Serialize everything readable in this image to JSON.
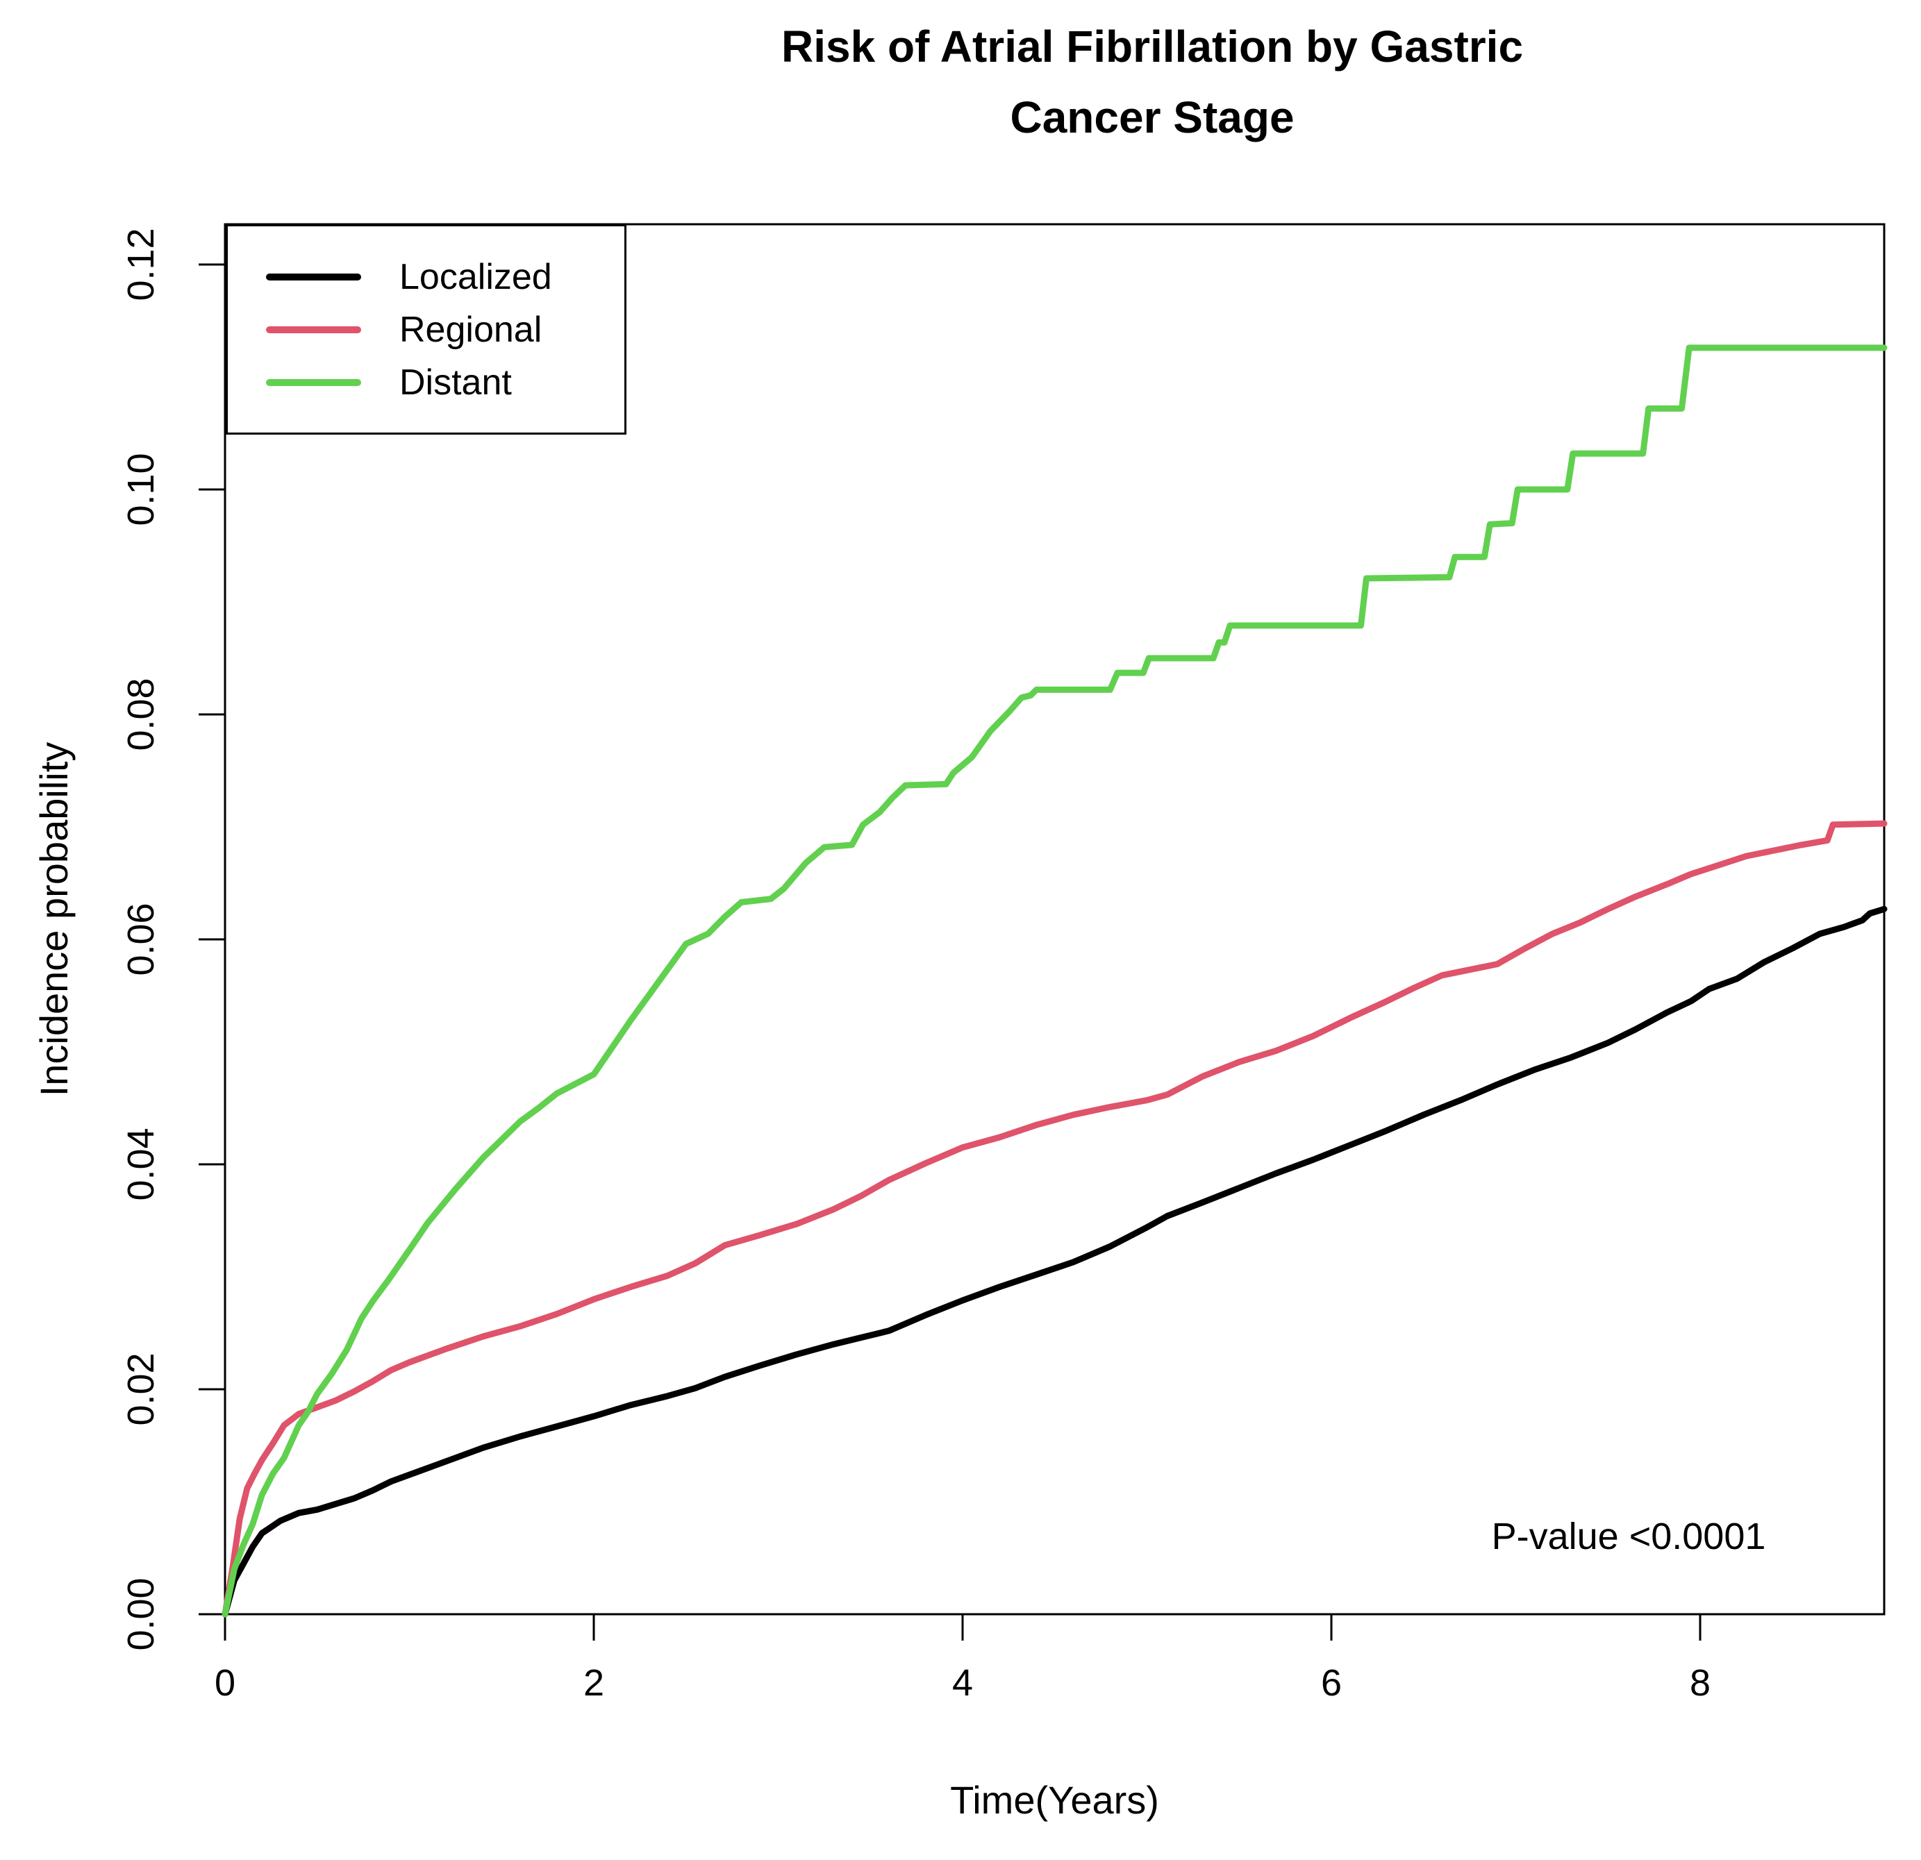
{
  "chart_data": {
    "type": "line",
    "title": "Risk of Atrial Fibrillation by Gastric Cancer Stage",
    "title_lines": [
      "Risk of Atrial Fibrillation by Gastric",
      "Cancer Stage"
    ],
    "xlabel": "Time(Years)",
    "ylabel": "Incidence probability",
    "annotation": "P-value <0.0001",
    "xlim": [
      0,
      9.1
    ],
    "ylim": [
      0,
      0.1235
    ],
    "grid": false,
    "xticks": {
      "values": [
        0,
        2,
        4,
        6,
        8
      ],
      "labels": [
        "0",
        "2",
        "4",
        "6",
        "8"
      ]
    },
    "yticks": {
      "values": [
        0,
        0.02,
        0.04,
        0.06,
        0.08,
        0.1,
        0.12
      ],
      "labels": [
        "0.00",
        "0.02",
        "0.04",
        "0.06",
        "0.08",
        "0.10",
        "0.12"
      ]
    },
    "legend": {
      "position": "top-left",
      "entries": [
        {
          "label": "Localized",
          "color": "#000000"
        },
        {
          "label": "Regional",
          "color": "#DF536B"
        },
        {
          "label": "Distant",
          "color": "#61D04F"
        }
      ]
    },
    "series": [
      {
        "name": "Localized",
        "color": "#000000",
        "points": [
          [
            0,
            0
          ],
          [
            0.05,
            0.003
          ],
          [
            0.1,
            0.0045
          ],
          [
            0.15,
            0.006
          ],
          [
            0.2,
            0.0072
          ],
          [
            0.3,
            0.0083
          ],
          [
            0.4,
            0.009
          ],
          [
            0.5,
            0.0093
          ],
          [
            0.6,
            0.0098
          ],
          [
            0.7,
            0.0103
          ],
          [
            0.8,
            0.011
          ],
          [
            0.9,
            0.0118
          ],
          [
            1.0,
            0.0124
          ],
          [
            1.2,
            0.0136
          ],
          [
            1.4,
            0.0148
          ],
          [
            1.6,
            0.0158
          ],
          [
            1.8,
            0.0167
          ],
          [
            2.0,
            0.0176
          ],
          [
            2.2,
            0.0186
          ],
          [
            2.4,
            0.0194
          ],
          [
            2.55,
            0.0201
          ],
          [
            2.71,
            0.0211
          ],
          [
            2.9,
            0.0221
          ],
          [
            3.1,
            0.0231
          ],
          [
            3.3,
            0.024
          ],
          [
            3.45,
            0.0246
          ],
          [
            3.6,
            0.0252
          ],
          [
            3.8,
            0.0266
          ],
          [
            4.0,
            0.0279
          ],
          [
            4.2,
            0.0291
          ],
          [
            4.4,
            0.0302
          ],
          [
            4.6,
            0.0313
          ],
          [
            4.8,
            0.0327
          ],
          [
            5.0,
            0.0344
          ],
          [
            5.11,
            0.0354
          ],
          [
            5.3,
            0.0366
          ],
          [
            5.5,
            0.0379
          ],
          [
            5.7,
            0.0392
          ],
          [
            5.9,
            0.0404
          ],
          [
            6.1,
            0.0417
          ],
          [
            6.3,
            0.043
          ],
          [
            6.5,
            0.0444
          ],
          [
            6.7,
            0.0457
          ],
          [
            6.9,
            0.0471
          ],
          [
            7.1,
            0.0484
          ],
          [
            7.3,
            0.0495
          ],
          [
            7.5,
            0.0508
          ],
          [
            7.65,
            0.052
          ],
          [
            7.82,
            0.0535
          ],
          [
            7.95,
            0.0545
          ],
          [
            8.05,
            0.0556
          ],
          [
            8.2,
            0.0565
          ],
          [
            8.35,
            0.058
          ],
          [
            8.5,
            0.0592
          ],
          [
            8.65,
            0.0605
          ],
          [
            8.78,
            0.0611
          ],
          [
            8.88,
            0.0617
          ],
          [
            8.92,
            0.0623
          ],
          [
            9.0,
            0.0627
          ]
        ]
      },
      {
        "name": "Regional",
        "color": "#DF536B",
        "points": [
          [
            0,
            0
          ],
          [
            0.04,
            0.004
          ],
          [
            0.08,
            0.0085
          ],
          [
            0.12,
            0.0112
          ],
          [
            0.16,
            0.0125
          ],
          [
            0.2,
            0.0137
          ],
          [
            0.26,
            0.0152
          ],
          [
            0.32,
            0.0168
          ],
          [
            0.4,
            0.0178
          ],
          [
            0.5,
            0.0184
          ],
          [
            0.6,
            0.019
          ],
          [
            0.7,
            0.0198
          ],
          [
            0.8,
            0.0207
          ],
          [
            0.9,
            0.0217
          ],
          [
            1.0,
            0.0224
          ],
          [
            1.2,
            0.0236
          ],
          [
            1.4,
            0.0247
          ],
          [
            1.6,
            0.0256
          ],
          [
            1.8,
            0.0267
          ],
          [
            2.0,
            0.028
          ],
          [
            2.2,
            0.0291
          ],
          [
            2.4,
            0.0301
          ],
          [
            2.55,
            0.0312
          ],
          [
            2.71,
            0.0328
          ],
          [
            2.9,
            0.0337
          ],
          [
            3.1,
            0.0347
          ],
          [
            3.3,
            0.036
          ],
          [
            3.45,
            0.0372
          ],
          [
            3.6,
            0.0386
          ],
          [
            3.8,
            0.0401
          ],
          [
            4.0,
            0.0415
          ],
          [
            4.2,
            0.0424
          ],
          [
            4.4,
            0.0435
          ],
          [
            4.6,
            0.0444
          ],
          [
            4.8,
            0.0451
          ],
          [
            5.0,
            0.0457
          ],
          [
            5.11,
            0.0462
          ],
          [
            5.3,
            0.0478
          ],
          [
            5.5,
            0.0491
          ],
          [
            5.7,
            0.0501
          ],
          [
            5.9,
            0.0514
          ],
          [
            6.1,
            0.053
          ],
          [
            6.3,
            0.0545
          ],
          [
            6.45,
            0.0557
          ],
          [
            6.6,
            0.0568
          ],
          [
            6.75,
            0.0573
          ],
          [
            6.9,
            0.0578
          ],
          [
            7.05,
            0.0592
          ],
          [
            7.2,
            0.0605
          ],
          [
            7.35,
            0.0615
          ],
          [
            7.5,
            0.0627
          ],
          [
            7.65,
            0.0638
          ],
          [
            7.82,
            0.0649
          ],
          [
            7.95,
            0.0658
          ],
          [
            8.1,
            0.0666
          ],
          [
            8.25,
            0.0674
          ],
          [
            8.4,
            0.0679
          ],
          [
            8.55,
            0.0684
          ],
          [
            8.69,
            0.0688
          ],
          [
            8.72,
            0.0702
          ],
          [
            9.0,
            0.0703
          ]
        ]
      },
      {
        "name": "Distant",
        "color": "#61D04F",
        "points": [
          [
            0,
            0
          ],
          [
            0.05,
            0.004
          ],
          [
            0.1,
            0.0062
          ],
          [
            0.15,
            0.008
          ],
          [
            0.2,
            0.0106
          ],
          [
            0.26,
            0.0125
          ],
          [
            0.32,
            0.0139
          ],
          [
            0.4,
            0.0168
          ],
          [
            0.45,
            0.018
          ],
          [
            0.5,
            0.0196
          ],
          [
            0.58,
            0.0214
          ],
          [
            0.66,
            0.0235
          ],
          [
            0.74,
            0.0263
          ],
          [
            0.8,
            0.0278
          ],
          [
            0.89,
            0.0298
          ],
          [
            1.0,
            0.0324
          ],
          [
            1.1,
            0.0348
          ],
          [
            1.25,
            0.0378
          ],
          [
            1.4,
            0.0406
          ],
          [
            1.5,
            0.0422
          ],
          [
            1.6,
            0.0438
          ],
          [
            1.7,
            0.045
          ],
          [
            1.8,
            0.0463
          ],
          [
            2.0,
            0.048
          ],
          [
            2.2,
            0.0528
          ],
          [
            2.35,
            0.0562
          ],
          [
            2.5,
            0.0596
          ],
          [
            2.62,
            0.0605
          ],
          [
            2.71,
            0.062
          ],
          [
            2.8,
            0.0633
          ],
          [
            2.96,
            0.0636
          ],
          [
            3.03,
            0.0645
          ],
          [
            3.15,
            0.0668
          ],
          [
            3.25,
            0.0682
          ],
          [
            3.4,
            0.0684
          ],
          [
            3.46,
            0.0702
          ],
          [
            3.55,
            0.0713
          ],
          [
            3.62,
            0.0726
          ],
          [
            3.69,
            0.0737
          ],
          [
            3.91,
            0.0738
          ],
          [
            3.95,
            0.0748
          ],
          [
            4.05,
            0.0762
          ],
          [
            4.15,
            0.0785
          ],
          [
            4.25,
            0.0802
          ],
          [
            4.32,
            0.0815
          ],
          [
            4.37,
            0.0817
          ],
          [
            4.4,
            0.0822
          ],
          [
            4.8,
            0.0822
          ],
          [
            4.84,
            0.0837
          ],
          [
            4.98,
            0.0837
          ],
          [
            5.01,
            0.085
          ],
          [
            5.36,
            0.085
          ],
          [
            5.39,
            0.0864
          ],
          [
            5.42,
            0.0864
          ],
          [
            5.45,
            0.0879
          ],
          [
            6.16,
            0.0879
          ],
          [
            6.19,
            0.0921
          ],
          [
            6.64,
            0.0922
          ],
          [
            6.67,
            0.094
          ],
          [
            6.83,
            0.094
          ],
          [
            6.86,
            0.0969
          ],
          [
            6.98,
            0.097
          ],
          [
            7.01,
            0.1
          ],
          [
            7.28,
            0.1
          ],
          [
            7.31,
            0.1032
          ],
          [
            7.69,
            0.1032
          ],
          [
            7.72,
            0.1072
          ],
          [
            7.9,
            0.1072
          ],
          [
            7.94,
            0.1126
          ],
          [
            9.0,
            0.1126
          ]
        ]
      }
    ]
  }
}
